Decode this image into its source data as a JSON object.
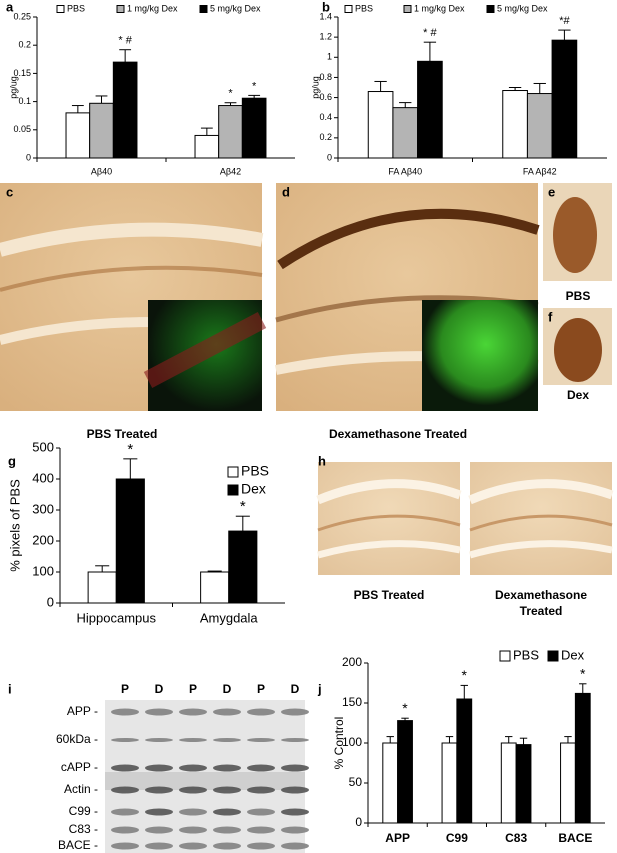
{
  "chart_data": [
    {
      "type": "bar",
      "panel": "a",
      "y_label": "pg/ug",
      "categories": [
        "Aβ40",
        "Aβ42"
      ],
      "series": [
        {
          "name": "PBS",
          "color": "#ffffff",
          "values": [
            0.08,
            0.04
          ],
          "errors": [
            0.013,
            0.013
          ],
          "annotations": [
            null,
            null
          ]
        },
        {
          "name": "1 mg/kg Dex",
          "color": "#b4b4b4",
          "values": [
            0.097,
            0.093
          ],
          "errors": [
            0.013,
            0.005
          ],
          "annotations": [
            null,
            "*"
          ]
        },
        {
          "name": "5 mg/kg Dex",
          "color": "#000000",
          "values": [
            0.17,
            0.106
          ],
          "errors": [
            0.022,
            0.005
          ],
          "annotations": [
            "* #",
            "*"
          ]
        }
      ],
      "ylim": [
        0,
        0.25
      ],
      "yticks": [
        0,
        0.05,
        0.1,
        0.15,
        0.2,
        0.25
      ],
      "legend": "top"
    },
    {
      "type": "bar",
      "panel": "b",
      "y_label": "pg/ug",
      "categories": [
        "FA Aβ40",
        "FA Aβ42"
      ],
      "series": [
        {
          "name": "PBS",
          "color": "#ffffff",
          "values": [
            0.66,
            0.67
          ],
          "errors": [
            0.1,
            0.03
          ],
          "annotations": [
            null,
            null
          ]
        },
        {
          "name": "1 mg/kg Dex",
          "color": "#b4b4b4",
          "values": [
            0.5,
            0.64
          ],
          "errors": [
            0.05,
            0.1
          ],
          "annotations": [
            null,
            null
          ]
        },
        {
          "name": "5 mg/kg Dex",
          "color": "#000000",
          "values": [
            0.96,
            1.17
          ],
          "errors": [
            0.19,
            0.1
          ],
          "annotations": [
            "* #",
            "*#"
          ]
        }
      ],
      "ylim": [
        0,
        1.4
      ],
      "yticks": [
        0,
        0.2,
        0.4,
        0.6,
        0.8,
        1,
        1.2,
        1.4
      ],
      "legend": "top"
    },
    {
      "type": "bar",
      "panel": "g",
      "y_label": "% pixels of PBS",
      "categories": [
        "Hippocampus",
        "Amygdala"
      ],
      "series": [
        {
          "name": "PBS",
          "color": "#ffffff",
          "values": [
            100,
            100
          ],
          "errors": [
            20,
            3
          ],
          "annotations": [
            null,
            null
          ]
        },
        {
          "name": "Dex",
          "color": "#000000",
          "values": [
            400,
            232
          ],
          "errors": [
            65,
            48
          ],
          "annotations": [
            "*",
            "*"
          ]
        }
      ],
      "ylim": [
        0,
        500
      ],
      "yticks": [
        0,
        100,
        200,
        300,
        400,
        500
      ],
      "legend": "top-right"
    },
    {
      "type": "bar",
      "panel": "j",
      "y_label": "% Control",
      "categories": [
        "APP",
        "C99",
        "C83",
        "BACE"
      ],
      "series": [
        {
          "name": "PBS",
          "color": "#ffffff",
          "values": [
            100,
            100,
            100,
            100
          ],
          "errors": [
            8,
            8,
            8,
            8
          ],
          "annotations": [
            null,
            null,
            null,
            null
          ]
        },
        {
          "name": "Dex",
          "color": "#000000",
          "values": [
            128,
            155,
            98,
            162
          ],
          "errors": [
            3,
            17,
            8,
            12
          ],
          "annotations": [
            "*",
            "*",
            null,
            "*"
          ]
        }
      ],
      "ylim": [
        0,
        200
      ],
      "yticks": [
        0,
        50,
        100,
        150,
        200
      ],
      "legend": "top"
    }
  ],
  "image_panels": {
    "c": "c",
    "d": "d",
    "e": "e",
    "f": "f",
    "h": "h",
    "i": "i"
  },
  "captions": {
    "c": "PBS Treated",
    "d": "Dexamethasone Treated",
    "e": "PBS",
    "f": "Dex",
    "h_left": "PBS Treated",
    "h_right": [
      "Dexamethasone",
      "Treated"
    ]
  },
  "blot": {
    "lanes": [
      "P",
      "D",
      "P",
      "D",
      "P",
      "D"
    ],
    "bands": [
      "APP -",
      "60kDa -",
      "cAPP -",
      "Actin -",
      "C99 -",
      "C83 -",
      "BACE -"
    ]
  }
}
